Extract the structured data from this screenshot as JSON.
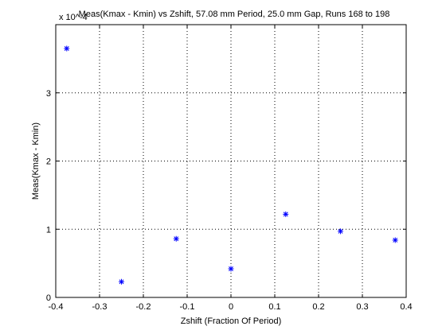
{
  "chart_data": {
    "type": "scatter",
    "title": "Meas(Kmax - Kmin) vs Zshift, 57.08 mm Period, 25.0 mm Gap, Runs 168 to 198",
    "xlabel": "Zshift (Fraction Of Period)",
    "ylabel": "Meas(Kmax - Kmin)",
    "y_exponent_label": "x 10^-4",
    "xlim": [
      -0.4,
      0.4
    ],
    "ylim": [
      0,
      4
    ],
    "x_ticks": [
      -0.4,
      -0.3,
      -0.2,
      -0.1,
      0,
      0.1,
      0.2,
      0.3,
      0.4
    ],
    "x_tick_labels": [
      "-0.4",
      "-0.3",
      "-0.2",
      "-0.1",
      "0",
      "0.1",
      "0.2",
      "0.3",
      "0.4"
    ],
    "y_ticks": [
      0,
      1,
      2,
      3
    ],
    "y_tick_labels": [
      "0",
      "1",
      "2",
      "3"
    ],
    "grid": "dotted",
    "marker": "asterisk",
    "marker_color": "#0000ff",
    "series": [
      {
        "x": [
          -0.375,
          -0.25,
          -0.125,
          0,
          0.125,
          0.25,
          0.375
        ],
        "y": [
          3.65,
          0.23,
          0.86,
          0.42,
          1.22,
          0.97,
          0.84
        ]
      }
    ]
  }
}
